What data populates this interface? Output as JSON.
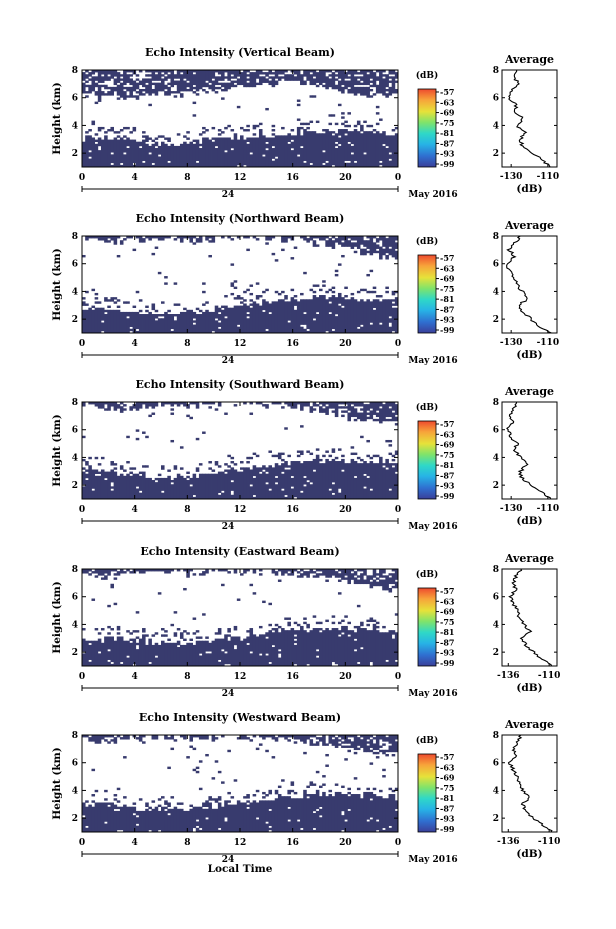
{
  "chart_data": [
    {
      "type": "heatmap",
      "title": "Echo Intensity (Vertical Beam)",
      "ylabel": "Height (km)",
      "xlabel": "",
      "x_ticks": [
        "0",
        "4",
        "8",
        "12",
        "16",
        "20",
        "0"
      ],
      "y_ticks": [
        "2",
        "4",
        "6",
        "8"
      ],
      "date_label": "24",
      "month_label": "May 2016",
      "xlim": [
        0,
        24
      ],
      "ylim": [
        1,
        8
      ],
      "colorbar": {
        "label": "(dB)",
        "ticks": [
          "-57",
          "-63",
          "-69",
          "-75",
          "-81",
          "-87",
          "-93",
          "-99"
        ],
        "range": [
          -99,
          -57
        ]
      },
      "echo_layer": {
        "lower_top_km": [
          3.0,
          3.1,
          3.0,
          2.6,
          2.7,
          3.0,
          3.1,
          3.2,
          3.4,
          3.5,
          3.6,
          3.5,
          3.3
        ],
        "upper_bottom_km": [
          6.2,
          5.9,
          6.1,
          6.3,
          6.2,
          6.5,
          6.7,
          7.0,
          7.1,
          6.8,
          6.4,
          6.0,
          6.2
        ]
      },
      "average_profile": {
        "title": "Average",
        "xlabel": "(dB)",
        "x_ticks": [
          "-130",
          "-110"
        ],
        "xlim": [
          -135,
          -105
        ],
        "y_ticks": [
          "2",
          "4",
          "6",
          "8"
        ],
        "ylim": [
          1,
          8
        ],
        "height_km": [
          1.0,
          1.5,
          2.0,
          2.5,
          3.0,
          3.5,
          4.0,
          4.5,
          5.0,
          5.5,
          6.0,
          6.5,
          7.0,
          7.5,
          8.0
        ],
        "db": [
          -108,
          -113,
          -118,
          -124,
          -125,
          -122,
          -127,
          -124,
          -128,
          -127,
          -131,
          -130,
          -126,
          -128,
          -127
        ]
      }
    },
    {
      "type": "heatmap",
      "title": "Echo Intensity (Northward Beam)",
      "ylabel": "Height (km)",
      "xlabel": "",
      "x_ticks": [
        "0",
        "4",
        "8",
        "12",
        "16",
        "20",
        "0"
      ],
      "y_ticks": [
        "2",
        "4",
        "6",
        "8"
      ],
      "date_label": "24",
      "month_label": "May 2016",
      "xlim": [
        0,
        24
      ],
      "ylim": [
        1,
        8
      ],
      "colorbar": {
        "label": "(dB)",
        "ticks": [
          "-57",
          "-63",
          "-69",
          "-75",
          "-81",
          "-87",
          "-93",
          "-99"
        ],
        "range": [
          -99,
          -57
        ]
      },
      "echo_layer": {
        "lower_top_km": [
          2.6,
          2.7,
          2.5,
          2.3,
          2.5,
          2.7,
          3.0,
          3.3,
          3.4,
          3.6,
          3.5,
          3.4,
          3.3
        ],
        "upper_bottom_km": [
          7.8,
          7.6,
          7.8,
          7.9,
          7.7,
          7.8,
          7.9,
          7.8,
          7.6,
          7.5,
          7.2,
          6.6,
          6.4
        ]
      },
      "average_profile": {
        "title": "Average",
        "xlabel": "(dB)",
        "x_ticks": [
          "-130",
          "-110"
        ],
        "xlim": [
          -135,
          -105
        ],
        "y_ticks": [
          "2",
          "4",
          "6",
          "8"
        ],
        "ylim": [
          1,
          8
        ],
        "height_km": [
          1.0,
          1.5,
          2.0,
          2.5,
          3.0,
          3.5,
          4.0,
          4.5,
          5.0,
          5.5,
          6.0,
          6.5,
          7.0,
          7.5,
          8.0
        ],
        "db": [
          -108,
          -115,
          -119,
          -124,
          -126,
          -121,
          -124,
          -127,
          -128,
          -131,
          -132,
          -128,
          -131,
          -128,
          -125
        ]
      }
    },
    {
      "type": "heatmap",
      "title": "Echo Intensity (Southward Beam)",
      "ylabel": "Height (km)",
      "xlabel": "",
      "x_ticks": [
        "0",
        "4",
        "8",
        "12",
        "16",
        "20",
        "0"
      ],
      "y_ticks": [
        "2",
        "4",
        "6",
        "8"
      ],
      "date_label": "24",
      "month_label": "May 2016",
      "xlim": [
        0,
        24
      ],
      "ylim": [
        1,
        8
      ],
      "colorbar": {
        "label": "(dB)",
        "ticks": [
          "-57",
          "-63",
          "-69",
          "-75",
          "-81",
          "-87",
          "-93",
          "-99"
        ],
        "range": [
          -99,
          -57
        ]
      },
      "echo_layer": {
        "lower_top_km": [
          3.0,
          3.0,
          2.8,
          2.5,
          2.6,
          2.8,
          3.2,
          3.4,
          3.6,
          3.7,
          3.7,
          3.6,
          3.5
        ],
        "upper_bottom_km": [
          7.8,
          7.5,
          7.6,
          7.8,
          7.7,
          7.8,
          7.9,
          7.8,
          7.6,
          7.4,
          7.0,
          6.6,
          6.5
        ]
      },
      "average_profile": {
        "title": "Average",
        "xlabel": "(dB)",
        "x_ticks": [
          "-130",
          "-110"
        ],
        "xlim": [
          -135,
          -105
        ],
        "y_ticks": [
          "2",
          "4",
          "6",
          "8"
        ],
        "ylim": [
          1,
          8
        ],
        "height_km": [
          1.0,
          1.5,
          2.0,
          2.5,
          3.0,
          3.5,
          4.0,
          4.5,
          5.0,
          5.5,
          6.0,
          6.5,
          7.0,
          7.5,
          8.0
        ],
        "db": [
          -108,
          -114,
          -119,
          -124,
          -125,
          -121,
          -125,
          -128,
          -127,
          -130,
          -132,
          -129,
          -131,
          -129,
          -127
        ]
      }
    },
    {
      "type": "heatmap",
      "title": "Echo Intensity (Eastward Beam)",
      "ylabel": "Height (km)",
      "xlabel": "",
      "x_ticks": [
        "0",
        "4",
        "8",
        "12",
        "16",
        "20",
        "0"
      ],
      "y_ticks": [
        "2",
        "4",
        "6",
        "8"
      ],
      "date_label": "24",
      "month_label": "May 2016",
      "xlim": [
        0,
        24
      ],
      "ylim": [
        1,
        8
      ],
      "colorbar": {
        "label": "(dB)",
        "ticks": [
          "-57",
          "-63",
          "-69",
          "-75",
          "-81",
          "-87",
          "-93",
          "-99"
        ],
        "range": [
          -99,
          -57
        ]
      },
      "echo_layer": {
        "lower_top_km": [
          3.0,
          3.0,
          2.8,
          2.6,
          2.6,
          2.8,
          3.1,
          3.4,
          3.6,
          3.7,
          3.7,
          3.6,
          3.5
        ],
        "upper_bottom_km": [
          7.8,
          7.4,
          7.6,
          7.8,
          7.7,
          7.8,
          7.9,
          7.8,
          7.6,
          7.4,
          7.1,
          6.6,
          6.5
        ]
      },
      "average_profile": {
        "title": "Average",
        "xlabel": "(dB)",
        "x_ticks": [
          "-136",
          "-110"
        ],
        "xlim": [
          -140,
          -105
        ],
        "y_ticks": [
          "2",
          "4",
          "6",
          "8"
        ],
        "ylim": [
          1,
          8
        ],
        "height_km": [
          1.0,
          1.5,
          2.0,
          2.5,
          3.0,
          3.5,
          4.0,
          4.5,
          5.0,
          5.5,
          6.0,
          6.5,
          7.0,
          7.5,
          8.0
        ],
        "db": [
          -108,
          -115,
          -120,
          -125,
          -127,
          -122,
          -126,
          -129,
          -130,
          -133,
          -135,
          -131,
          -133,
          -131,
          -128
        ]
      }
    },
    {
      "type": "heatmap",
      "title": "Echo Intensity (Westward Beam)",
      "ylabel": "Height (km)",
      "xlabel": "Local Time",
      "x_ticks": [
        "0",
        "4",
        "8",
        "12",
        "16",
        "20",
        "0"
      ],
      "y_ticks": [
        "2",
        "4",
        "6",
        "8"
      ],
      "date_label": "24",
      "month_label": "May 2016",
      "xlim": [
        0,
        24
      ],
      "ylim": [
        1,
        8
      ],
      "colorbar": {
        "label": "(dB)",
        "ticks": [
          "-57",
          "-63",
          "-69",
          "-75",
          "-81",
          "-87",
          "-93",
          "-99"
        ],
        "range": [
          -99,
          -57
        ]
      },
      "echo_layer": {
        "lower_top_km": [
          3.0,
          3.0,
          2.8,
          2.6,
          2.6,
          2.8,
          3.1,
          3.4,
          3.6,
          3.7,
          3.7,
          3.6,
          3.5
        ],
        "upper_bottom_km": [
          7.8,
          7.5,
          7.7,
          7.8,
          7.7,
          7.8,
          7.9,
          7.8,
          7.6,
          7.4,
          7.1,
          6.6,
          6.5
        ]
      },
      "average_profile": {
        "title": "Average",
        "xlabel": "(dB)",
        "x_ticks": [
          "-136",
          "-110"
        ],
        "xlim": [
          -140,
          -105
        ],
        "y_ticks": [
          "2",
          "4",
          "6",
          "8"
        ],
        "ylim": [
          1,
          8
        ],
        "height_km": [
          1.0,
          1.5,
          2.0,
          2.5,
          3.0,
          3.5,
          4.0,
          4.5,
          5.0,
          5.5,
          6.0,
          6.5,
          7.0,
          7.5,
          8.0
        ],
        "db": [
          -108,
          -114,
          -120,
          -125,
          -127,
          -122,
          -127,
          -129,
          -130,
          -133,
          -135,
          -131,
          -133,
          -130,
          -128
        ]
      }
    }
  ],
  "colors": {
    "echo": "#383b6e",
    "colorscale": [
      "#3a3f9a",
      "#2f6fd0",
      "#27b3e6",
      "#2fd8c7",
      "#7fe36b",
      "#e6e23a",
      "#f7a43a",
      "#ee4a2e"
    ]
  }
}
